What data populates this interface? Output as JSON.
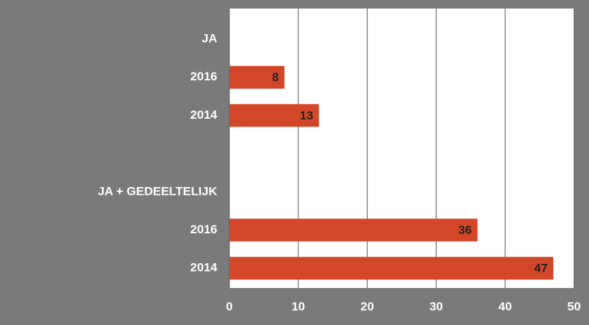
{
  "chart_data": {
    "type": "barh",
    "categories": [
      "JA",
      "2016",
      "2014",
      null,
      "JA + GEDEELTELIJK",
      "2016",
      "2014"
    ],
    "values": [
      null,
      8,
      13,
      null,
      null,
      36,
      47
    ],
    "color": "#d2472a",
    "xlim": [
      0,
      50
    ],
    "xticks": [
      0,
      10,
      20,
      30,
      40,
      50
    ],
    "grid": true
  }
}
